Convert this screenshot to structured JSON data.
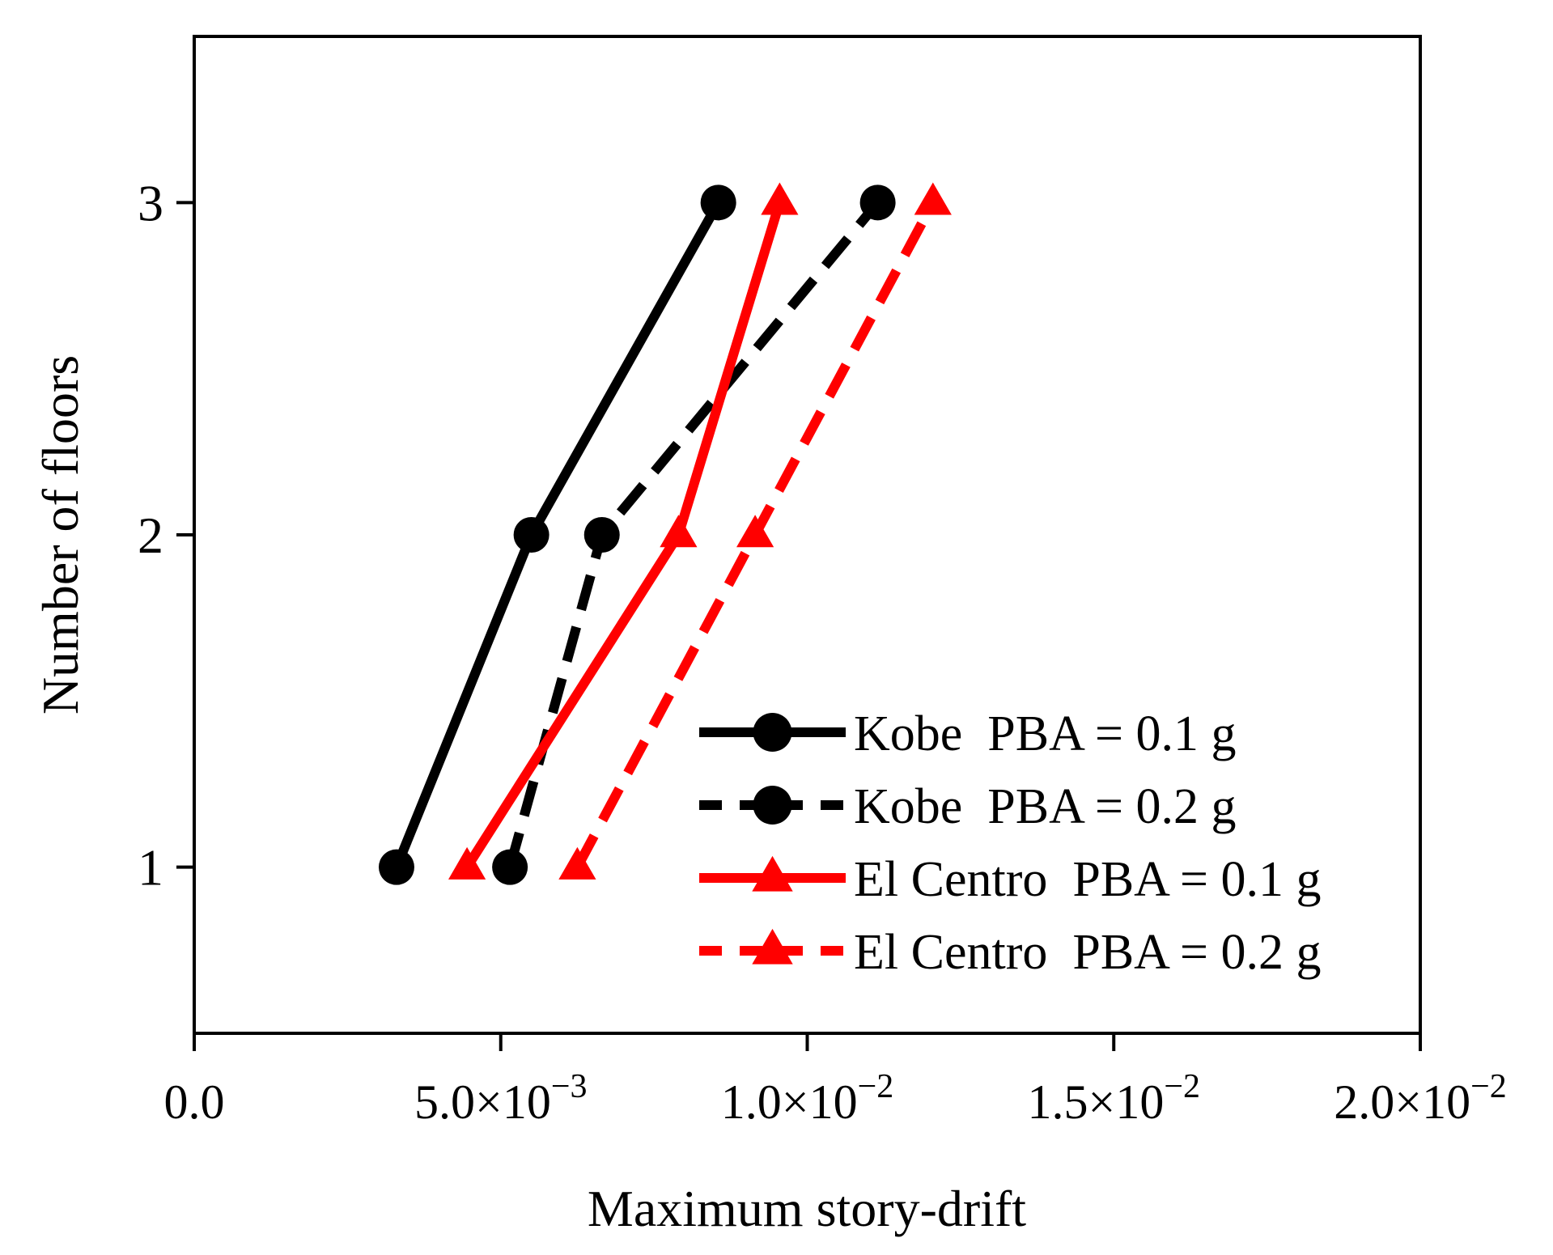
{
  "chart_data": {
    "type": "line",
    "title": "",
    "xlabel": "Maximum story-drift",
    "ylabel": "Number of floors",
    "xlim": [
      0,
      0.02
    ],
    "ylim": [
      0.5,
      3.5
    ],
    "grid": false,
    "legend_position": "lower-right",
    "x_ticks": [
      {
        "value": 0,
        "mantissa": "0.0",
        "exponent": ""
      },
      {
        "value": 0.005,
        "mantissa": "5.0×10",
        "exponent": "−3"
      },
      {
        "value": 0.01,
        "mantissa": "1.0×10",
        "exponent": "−2"
      },
      {
        "value": 0.015,
        "mantissa": "1.5×10",
        "exponent": "−2"
      },
      {
        "value": 0.02,
        "mantissa": "2.0×10",
        "exponent": "−2"
      }
    ],
    "y_ticks": [
      {
        "value": 1,
        "label": "1"
      },
      {
        "value": 2,
        "label": "2"
      },
      {
        "value": 3,
        "label": "3"
      }
    ],
    "series": [
      {
        "name": "Kobe  PBA = 0.1 g",
        "color": "#000000",
        "dash": "solid",
        "marker": "circle",
        "x": [
          0.0033,
          0.0055,
          0.00855
        ],
        "y": [
          1,
          2,
          3
        ]
      },
      {
        "name": "Kobe  PBA = 0.2 g",
        "color": "#000000",
        "dash": "dashed",
        "marker": "circle",
        "x": [
          0.00515,
          0.00665,
          0.01115
        ],
        "y": [
          1,
          2,
          3
        ]
      },
      {
        "name": "El Centro  PBA = 0.1 g",
        "color": "#ff0000",
        "dash": "solid",
        "marker": "triangle",
        "x": [
          0.00445,
          0.0079,
          0.00955
        ],
        "y": [
          1,
          2,
          3
        ]
      },
      {
        "name": "El Centro  PBA = 0.2 g",
        "color": "#ff0000",
        "dash": "dashed",
        "marker": "triangle",
        "x": [
          0.00625,
          0.00915,
          0.01205
        ],
        "y": [
          1,
          2,
          3
        ]
      }
    ]
  }
}
